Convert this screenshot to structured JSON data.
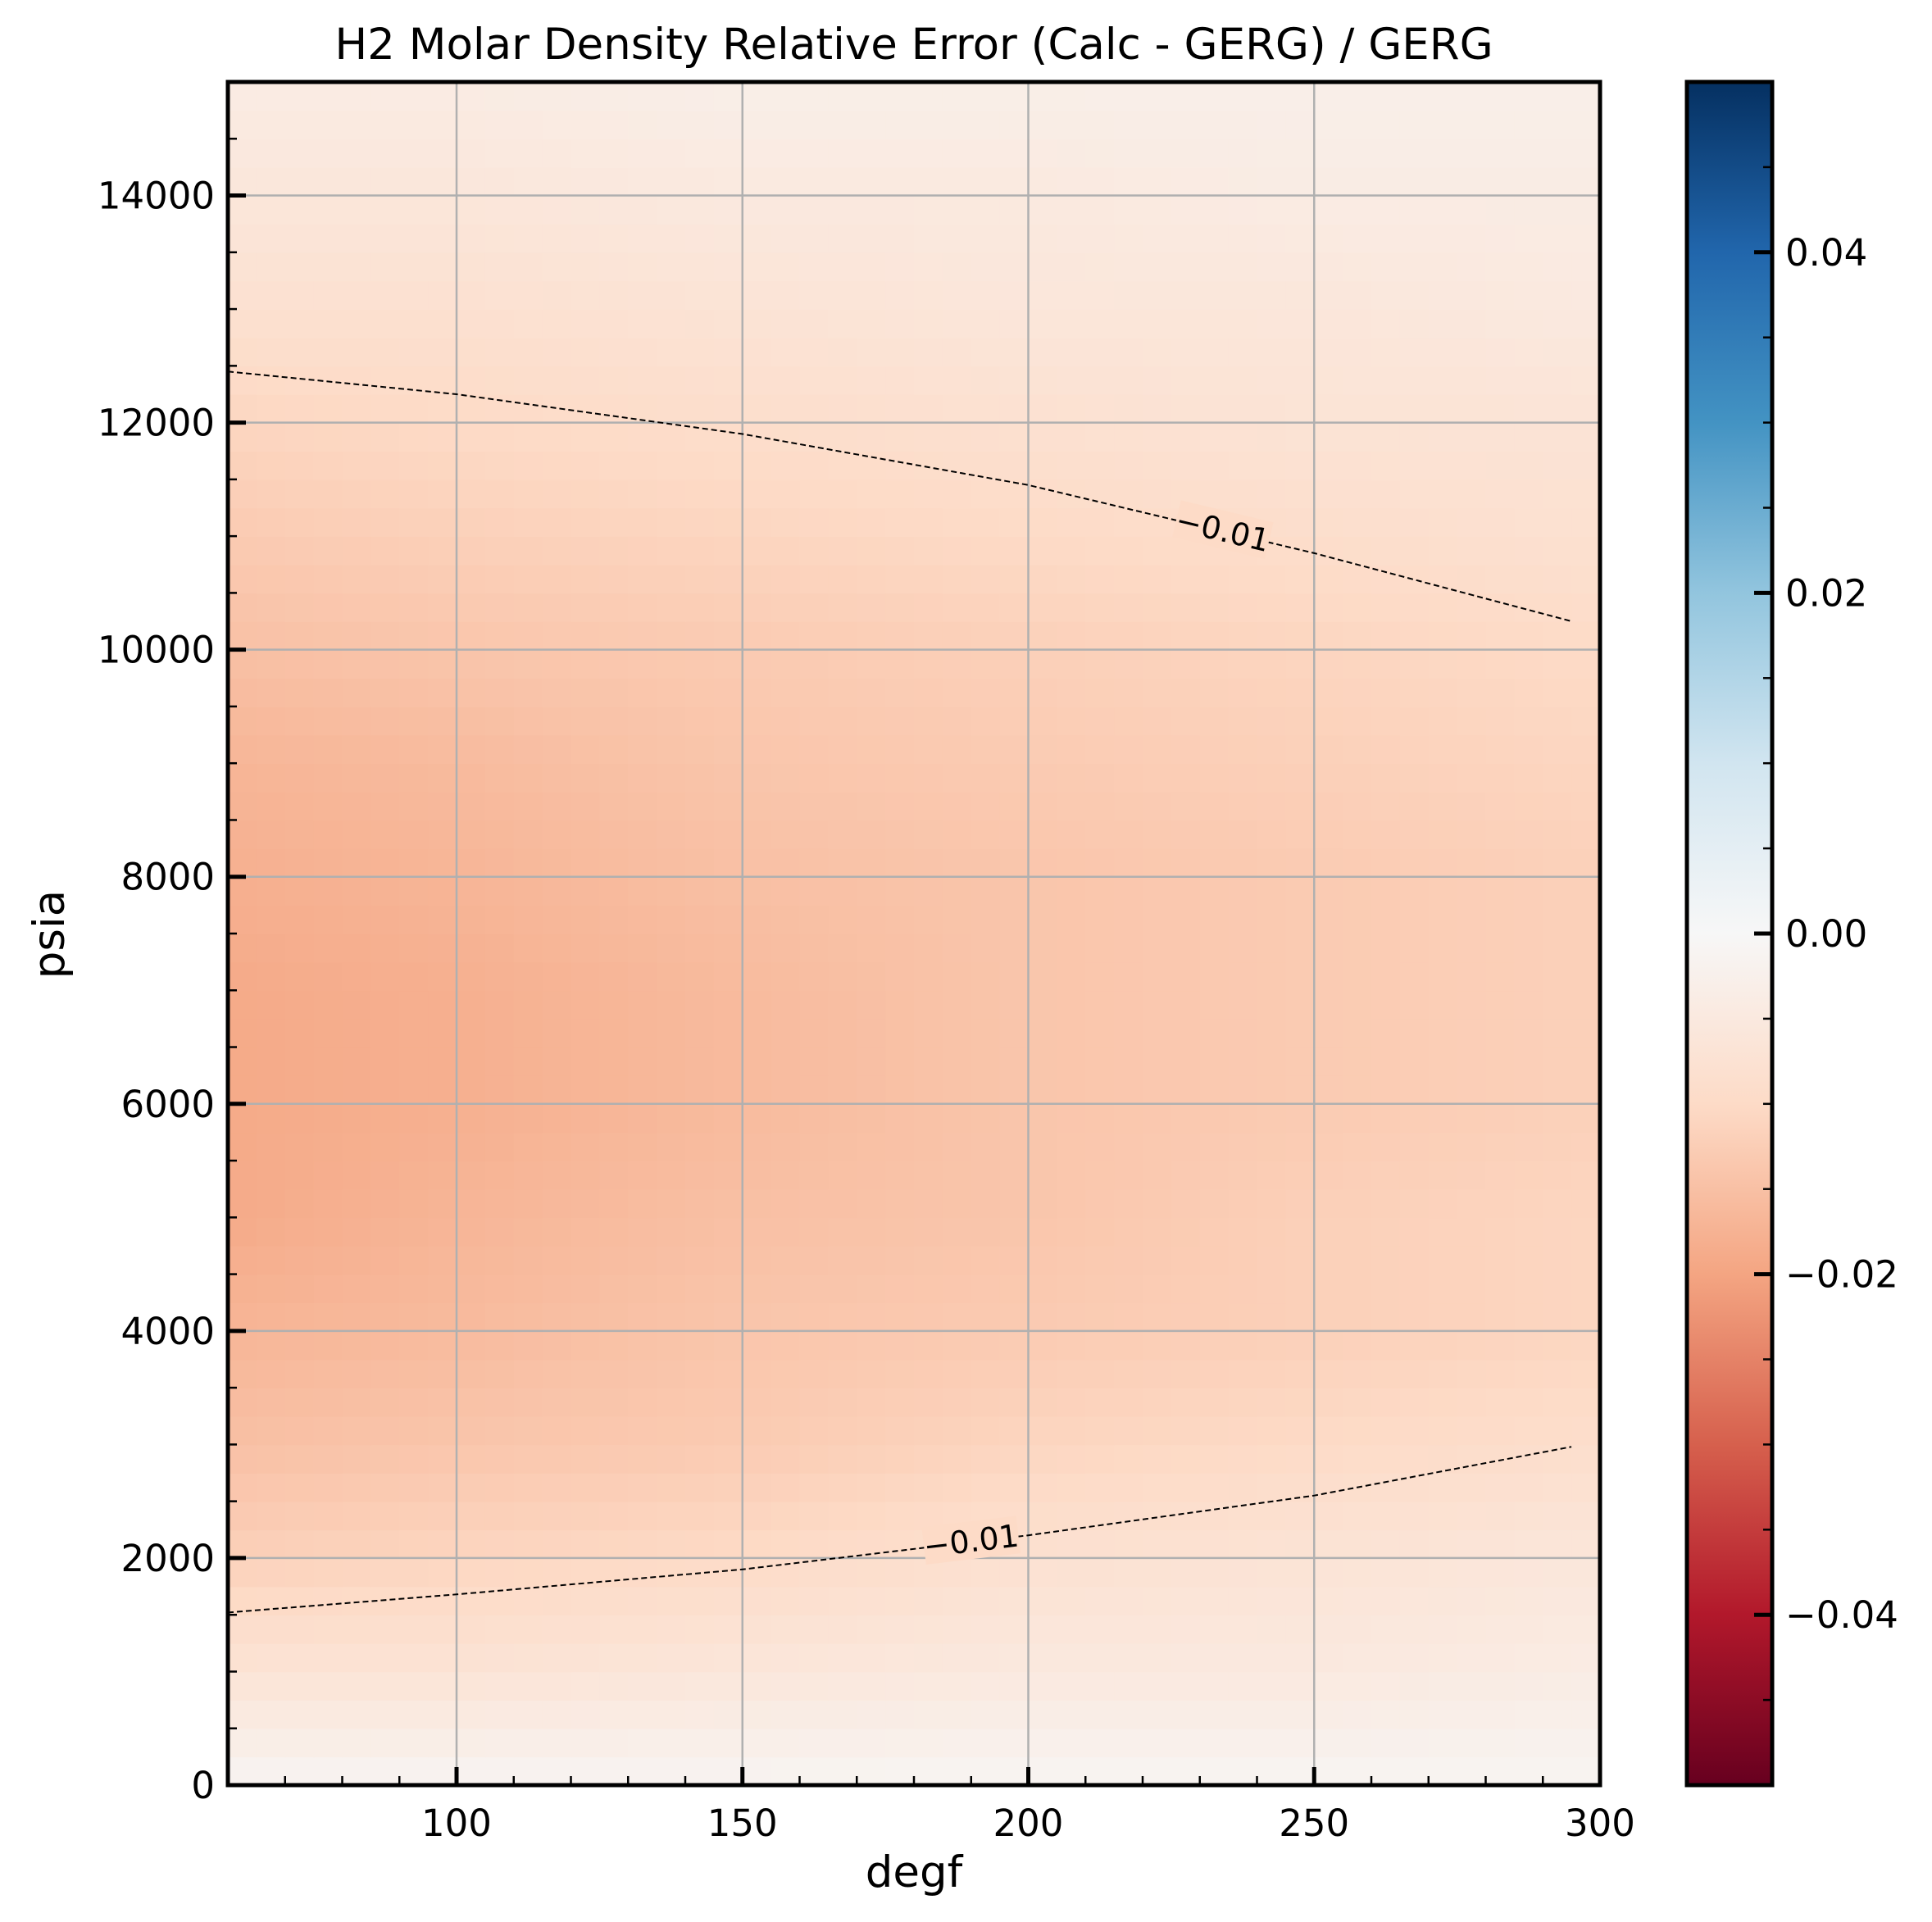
{
  "chart_data": {
    "type": "heatmap",
    "title": "H2 Molar Density Relative Error (Calc - GERG) / GERG",
    "xlabel": "degf",
    "ylabel": "psia",
    "xlim": [
      60,
      300
    ],
    "ylim": [
      0,
      15000
    ],
    "x_ticks": [
      {
        "value": 100,
        "label": "100"
      },
      {
        "value": 150,
        "label": "150"
      },
      {
        "value": 200,
        "label": "200"
      },
      {
        "value": 250,
        "label": "250"
      },
      {
        "value": 300,
        "label": "300"
      }
    ],
    "y_ticks": [
      {
        "value": 0,
        "label": "0"
      },
      {
        "value": 2000,
        "label": "2000"
      },
      {
        "value": 4000,
        "label": "4000"
      },
      {
        "value": 6000,
        "label": "6000"
      },
      {
        "value": 8000,
        "label": "8000"
      },
      {
        "value": 10000,
        "label": "10000"
      },
      {
        "value": 12000,
        "label": "12000"
      },
      {
        "value": 14000,
        "label": "14000"
      }
    ],
    "grid": true,
    "colormap": "RdBu",
    "colorbar": {
      "range": [
        -0.05,
        0.05
      ],
      "ticks": [
        {
          "value": 0.04,
          "label": "0.04"
        },
        {
          "value": 0.02,
          "label": "0.02"
        },
        {
          "value": 0.0,
          "label": "0.00"
        },
        {
          "value": -0.02,
          "label": "−0.02"
        },
        {
          "value": -0.04,
          "label": "−0.04"
        }
      ]
    },
    "surface": {
      "x": [
        60,
        100,
        150,
        200,
        250,
        295
      ],
      "y": [
        0,
        1000,
        2000,
        3000,
        4000,
        5000,
        6000,
        7000,
        8000,
        9000,
        10000,
        11000,
        12000,
        13000,
        14000,
        15000
      ],
      "z": [
        [
          -0.001,
          -0.001,
          -0.001,
          -0.001,
          -0.001,
          -0.001
        ],
        [
          -0.007,
          -0.007,
          -0.006,
          -0.005,
          -0.005,
          -0.004
        ],
        [
          -0.012,
          -0.011,
          -0.01,
          -0.008,
          -0.007,
          -0.006
        ],
        [
          -0.015,
          -0.014,
          -0.013,
          -0.011,
          -0.01,
          -0.009
        ],
        [
          -0.017,
          -0.016,
          -0.014,
          -0.013,
          -0.012,
          -0.011
        ],
        [
          -0.019,
          -0.017,
          -0.015,
          -0.014,
          -0.012,
          -0.011
        ],
        [
          -0.019,
          -0.018,
          -0.016,
          -0.014,
          -0.013,
          -0.012
        ],
        [
          -0.019,
          -0.018,
          -0.016,
          -0.014,
          -0.013,
          -0.012
        ],
        [
          -0.018,
          -0.017,
          -0.015,
          -0.014,
          -0.013,
          -0.012
        ],
        [
          -0.017,
          -0.016,
          -0.014,
          -0.013,
          -0.012,
          -0.011
        ],
        [
          -0.015,
          -0.014,
          -0.013,
          -0.012,
          -0.011,
          -0.01
        ],
        [
          -0.013,
          -0.012,
          -0.011,
          -0.01,
          -0.009,
          -0.008
        ],
        [
          -0.011,
          -0.01,
          -0.009,
          -0.008,
          -0.007,
          -0.007
        ],
        [
          -0.008,
          -0.008,
          -0.007,
          -0.006,
          -0.006,
          -0.005
        ],
        [
          -0.006,
          -0.006,
          -0.005,
          -0.005,
          -0.004,
          -0.004
        ],
        [
          -0.004,
          -0.004,
          -0.003,
          -0.003,
          -0.003,
          -0.003
        ]
      ]
    },
    "contours": [
      {
        "level": -0.01,
        "label": "−0.01",
        "style": "dashed",
        "x": [
          60,
          100,
          150,
          200,
          250,
          295
        ],
        "y": [
          12450,
          12250,
          11900,
          11450,
          10850,
          10250
        ],
        "label_at": {
          "x": 234,
          "y": 11050
        }
      },
      {
        "level": -0.01,
        "label": "−0.01",
        "style": "dashed",
        "x": [
          60,
          100,
          150,
          200,
          250,
          295
        ],
        "y": [
          1520,
          1680,
          1900,
          2200,
          2550,
          2980
        ],
        "label_at": {
          "x": 190,
          "y": 2150
        }
      }
    ]
  }
}
